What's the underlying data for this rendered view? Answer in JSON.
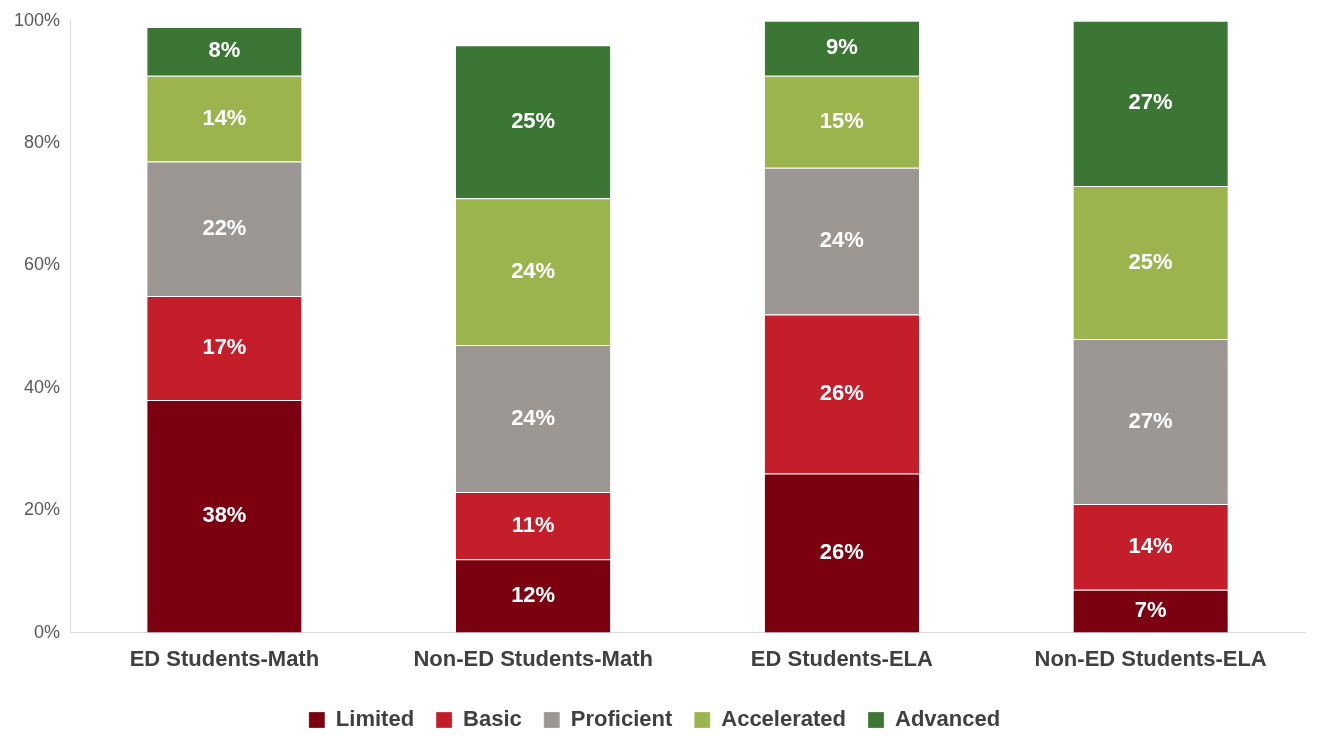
{
  "chart_data": {
    "type": "bar",
    "stacked": true,
    "categories": [
      "ED Students-Math",
      "Non-ED Students-Math",
      "ED Students-ELA",
      "Non-ED Students-ELA"
    ],
    "series": [
      {
        "name": "Limited",
        "color": "#7b0010",
        "values": [
          38,
          12,
          26,
          7
        ],
        "value_labels": [
          "38%",
          "12%",
          "26%",
          "7%"
        ]
      },
      {
        "name": "Basic",
        "color": "#c41e2a",
        "values": [
          17,
          11,
          26,
          14
        ],
        "value_labels": [
          "17%",
          "11%",
          "26%",
          "14%"
        ]
      },
      {
        "name": "Proficient",
        "color": "#9d9793",
        "values": [
          22,
          24,
          24,
          27
        ],
        "value_labels": [
          "22%",
          "24%",
          "24%",
          "27%"
        ]
      },
      {
        "name": "Accelerated",
        "color": "#9bb44e",
        "values": [
          14,
          24,
          15,
          25
        ],
        "value_labels": [
          "14%",
          "24%",
          "15%",
          "25%"
        ]
      },
      {
        "name": "Advanced",
        "color": "#3c7634",
        "values": [
          8,
          25,
          9,
          27
        ],
        "value_labels": [
          "8%",
          "25%",
          "9%",
          "27%"
        ]
      }
    ],
    "ylim": [
      0,
      100
    ],
    "yticks": [
      {
        "value": 0,
        "label": "0%"
      },
      {
        "value": 20,
        "label": "20%"
      },
      {
        "value": 40,
        "label": "40%"
      },
      {
        "value": 60,
        "label": "60%"
      },
      {
        "value": 80,
        "label": "80%"
      },
      {
        "value": 100,
        "label": "100%"
      }
    ],
    "grid": false,
    "legend": "bottom"
  }
}
